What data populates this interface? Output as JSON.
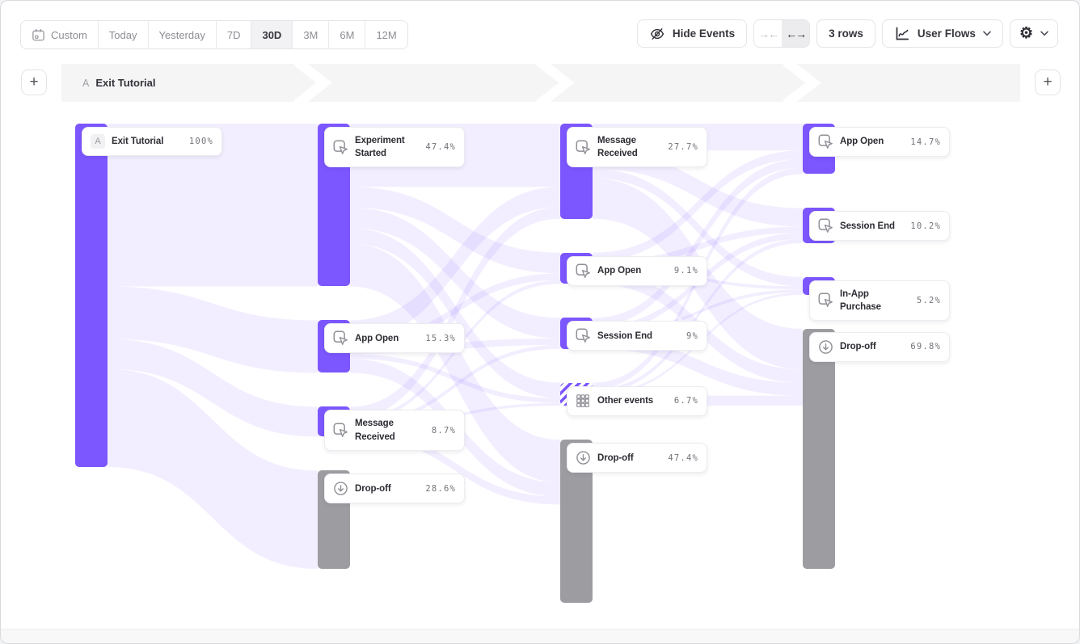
{
  "toolbar": {
    "date_ranges": [
      {
        "label": "Custom",
        "selected": false
      },
      {
        "label": "Today",
        "selected": false
      },
      {
        "label": "Yesterday",
        "selected": false
      },
      {
        "label": "7D",
        "selected": false
      },
      {
        "label": "30D",
        "selected": true
      },
      {
        "label": "3M",
        "selected": false
      },
      {
        "label": "6M",
        "selected": false
      },
      {
        "label": "12M",
        "selected": false
      }
    ],
    "hide_events_label": "Hide Events",
    "rows_label": "3 rows",
    "view_label": "User Flows"
  },
  "path_header": {
    "step_letter": "A",
    "step_name": "Exit Tutorial"
  },
  "colors": {
    "accent_purple": "#7C56FE",
    "ribbon_purple": "rgba(124,86,254,0.10)",
    "dropoff_gray": "#9D9DA1"
  },
  "chart_data": {
    "type": "sankey",
    "columns": [
      {
        "nodes": [
          {
            "badge": "A",
            "label": "Exit Tutorial",
            "pct": 100,
            "pct_label": "100%",
            "type": "event"
          }
        ]
      },
      {
        "nodes": [
          {
            "label": "Experiment Started",
            "pct": 47.4,
            "pct_label": "47.4%",
            "type": "event"
          },
          {
            "label": "App Open",
            "pct": 15.3,
            "pct_label": "15.3%",
            "type": "event"
          },
          {
            "label": "Message Received",
            "pct": 8.7,
            "pct_label": "8.7%",
            "type": "event"
          },
          {
            "label": "Drop-off",
            "pct": 28.6,
            "pct_label": "28.6%",
            "type": "dropoff"
          }
        ]
      },
      {
        "nodes": [
          {
            "label": "Message Received",
            "pct": 27.7,
            "pct_label": "27.7%",
            "type": "event"
          },
          {
            "label": "App Open",
            "pct": 9.1,
            "pct_label": "9.1%",
            "type": "event"
          },
          {
            "label": "Session End",
            "pct": 9,
            "pct_label": "9%",
            "type": "event"
          },
          {
            "label": "Other events",
            "pct": 6.7,
            "pct_label": "6.7%",
            "type": "other"
          },
          {
            "label": "Drop-off",
            "pct": 47.4,
            "pct_label": "47.4%",
            "type": "dropoff"
          }
        ]
      },
      {
        "nodes": [
          {
            "label": "App Open",
            "pct": 14.7,
            "pct_label": "14.7%",
            "type": "event"
          },
          {
            "label": "Session End",
            "pct": 10.2,
            "pct_label": "10.2%",
            "type": "event"
          },
          {
            "label": "In-App Purchase",
            "pct": 5.2,
            "pct_label": "5.2%",
            "type": "event"
          },
          {
            "label": "Drop-off",
            "pct": 69.8,
            "pct_label": "69.8%",
            "type": "dropoff"
          }
        ]
      }
    ],
    "links": [
      [
        0,
        0,
        0,
        47.4
      ],
      [
        0,
        0,
        1,
        15.3
      ],
      [
        0,
        0,
        2,
        8.7
      ],
      [
        0,
        0,
        3,
        28.6
      ],
      [
        1,
        0,
        0,
        18.4
      ],
      [
        1,
        0,
        1,
        6.0
      ],
      [
        1,
        0,
        2,
        6.0
      ],
      [
        1,
        0,
        3,
        4.5
      ],
      [
        1,
        0,
        4,
        12.5
      ],
      [
        1,
        1,
        0,
        5.9
      ],
      [
        1,
        1,
        1,
        2.0
      ],
      [
        1,
        1,
        2,
        1.9
      ],
      [
        1,
        1,
        3,
        1.4
      ],
      [
        1,
        1,
        4,
        4.1
      ],
      [
        1,
        2,
        0,
        3.4
      ],
      [
        1,
        2,
        1,
        1.1
      ],
      [
        1,
        2,
        2,
        1.1
      ],
      [
        1,
        2,
        3,
        0.8
      ],
      [
        1,
        2,
        4,
        2.3
      ],
      [
        2,
        0,
        0,
        7.8
      ],
      [
        2,
        0,
        1,
        5.4
      ],
      [
        2,
        0,
        2,
        2.7
      ],
      [
        2,
        0,
        3,
        11.8
      ],
      [
        2,
        1,
        0,
        2.5
      ],
      [
        2,
        1,
        1,
        1.8
      ],
      [
        2,
        1,
        2,
        0.9
      ],
      [
        2,
        1,
        3,
        3.9
      ],
      [
        2,
        2,
        0,
        2.5
      ],
      [
        2,
        2,
        1,
        1.8
      ],
      [
        2,
        2,
        2,
        0.9
      ],
      [
        2,
        2,
        3,
        3.8
      ],
      [
        2,
        3,
        0,
        1.9
      ],
      [
        2,
        3,
        1,
        1.2
      ],
      [
        2,
        3,
        2,
        0.7
      ],
      [
        2,
        3,
        3,
        2.9
      ]
    ]
  }
}
